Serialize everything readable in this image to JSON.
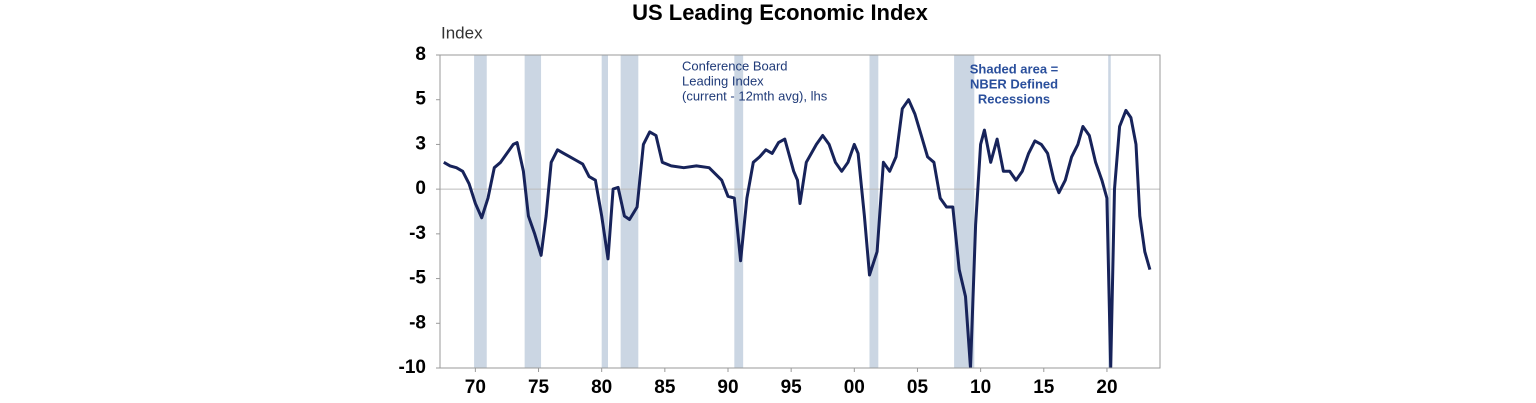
{
  "chart_data": {
    "type": "line",
    "title": "US Leading Economic Index",
    "y_label": "Index",
    "annotation": [
      "Conference Board",
      "Leading Index",
      "(current - 12mth avg), lhs"
    ],
    "shading_note": [
      "Shaded area =",
      "NBER Defined",
      "Recessions"
    ],
    "color": "#17235a",
    "recession_color": "#cbd6e3",
    "zero_line": true,
    "recessions": [
      [
        1969.9,
        1970.9
      ],
      [
        1973.9,
        1975.2
      ],
      [
        1980.0,
        1980.5
      ],
      [
        1981.5,
        1982.9
      ],
      [
        1990.5,
        1991.2
      ],
      [
        2001.2,
        2001.9
      ],
      [
        2007.9,
        2009.5
      ],
      [
        2020.1,
        2020.3
      ]
    ],
    "x": [
      1967.5,
      1968,
      1968.5,
      1969,
      1969.5,
      1970,
      1970.5,
      1971,
      1971.5,
      1972,
      1972.5,
      1973,
      1973.3,
      1973.8,
      1974.2,
      1974.7,
      1975.2,
      1975.6,
      1976,
      1976.5,
      1977,
      1977.5,
      1978,
      1978.5,
      1979,
      1979.5,
      1980,
      1980.5,
      1980.9,
      1981.3,
      1981.8,
      1982.2,
      1982.8,
      1983.3,
      1983.8,
      1984.3,
      1984.8,
      1985.5,
      1986.5,
      1987.5,
      1988.5,
      1989.5,
      1990,
      1990.5,
      1991,
      1991.5,
      1992,
      1992.5,
      1993,
      1993.5,
      1994,
      1994.5,
      1995.2,
      1995.5,
      1995.7,
      1996.2,
      1997,
      1997.5,
      1998,
      1998.5,
      1999,
      1999.5,
      2000,
      2000.3,
      2000.8,
      2001.2,
      2001.8,
      2002.3,
      2002.8,
      2003.3,
      2003.8,
      2004.3,
      2004.8,
      2005.3,
      2005.8,
      2006.3,
      2006.8,
      2007.3,
      2007.8,
      2008.3,
      2008.8,
      2009.2,
      2009.6,
      2010.0,
      2010.3,
      2010.8,
      2011.3,
      2011.8,
      2012.3,
      2012.8,
      2013.3,
      2013.8,
      2014.3,
      2014.8,
      2015.3,
      2015.8,
      2016.2,
      2016.7,
      2017.2,
      2017.7,
      2018.1,
      2018.6,
      2019.1,
      2019.6,
      2020.0,
      2020.3,
      2020.6,
      2021.0,
      2021.5,
      2021.9,
      2022.3,
      2022.6,
      2023.0,
      2023.4
    ],
    "values": [
      1.5,
      1.3,
      1.2,
      1.0,
      0.3,
      -0.8,
      -1.6,
      -0.5,
      1.2,
      1.5,
      2.0,
      2.5,
      2.6,
      1.0,
      -1.5,
      -2.5,
      -3.7,
      -1.5,
      1.5,
      2.2,
      2.0,
      1.8,
      1.6,
      1.4,
      0.7,
      0.5,
      -1.5,
      -3.9,
      0.0,
      0.1,
      -1.5,
      -1.7,
      -1.0,
      2.5,
      3.2,
      3.0,
      1.5,
      1.3,
      1.2,
      1.3,
      1.2,
      0.5,
      -0.4,
      -0.5,
      -4.0,
      -0.5,
      1.5,
      1.8,
      2.2,
      2.0,
      2.6,
      2.8,
      1.0,
      0.5,
      -0.8,
      1.5,
      2.5,
      3.0,
      2.5,
      1.5,
      1.0,
      1.5,
      2.5,
      2.0,
      -1.5,
      -4.8,
      -3.5,
      1.5,
      1.0,
      1.8,
      4.5,
      5.0,
      4.2,
      3.0,
      1.8,
      1.5,
      -0.5,
      -1.0,
      -1.0,
      -4.5,
      -6.0,
      -10.0,
      -2.0,
      2.5,
      3.3,
      1.5,
      2.8,
      1.0,
      1.0,
      0.5,
      1.0,
      2.0,
      2.7,
      2.5,
      2.0,
      0.5,
      -0.2,
      0.5,
      1.8,
      2.5,
      3.5,
      3.0,
      1.5,
      0.5,
      -0.5,
      -10.0,
      0.0,
      3.5,
      4.4,
      4.0,
      2.5,
      -1.5,
      -3.5,
      -4.5
    ],
    "xlim": [
      1967.2,
      2024.2
    ],
    "xticks": [
      {
        "value": 1970,
        "label": "70"
      },
      {
        "value": 1975,
        "label": "75"
      },
      {
        "value": 1980,
        "label": "80"
      },
      {
        "value": 1985,
        "label": "85"
      },
      {
        "value": 1990,
        "label": "90"
      },
      {
        "value": 1995,
        "label": "95"
      },
      {
        "value": 2000,
        "label": "00"
      },
      {
        "value": 2005,
        "label": "05"
      },
      {
        "value": 2010,
        "label": "10"
      },
      {
        "value": 2015,
        "label": "15"
      },
      {
        "value": 2020,
        "label": "20"
      }
    ],
    "ylim": [
      -10,
      7.5
    ],
    "yticks": [
      {
        "value": 7.5,
        "label": "8"
      },
      5,
      {
        "value": 2.5,
        "label": "3"
      },
      0,
      {
        "value": -2.5,
        "label": "-3"
      },
      -5,
      {
        "value": -7.5,
        "label": "-8"
      },
      -10
    ]
  }
}
